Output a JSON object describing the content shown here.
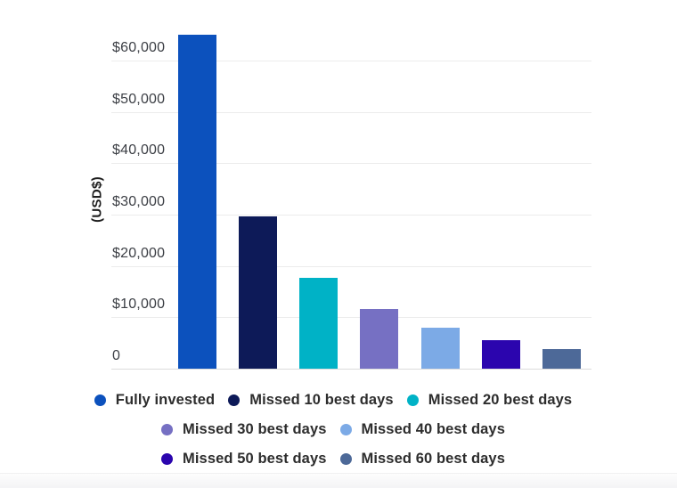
{
  "chart_data": {
    "type": "bar",
    "title": "",
    "xlabel": "",
    "ylabel": "(USD$)",
    "ylim": [
      0,
      65000
    ],
    "ytick_step": 10000,
    "grid": "horizontal gridlines on",
    "legend_position": "bottom, 3 centered rows",
    "yticks": [
      {
        "label": "$60,000",
        "value": 60000
      },
      {
        "label": "$50,000",
        "value": 50000
      },
      {
        "label": "$40,000",
        "value": 40000
      },
      {
        "label": "$30,000",
        "value": 30000
      },
      {
        "label": "$20,000",
        "value": 20000
      },
      {
        "label": "$10,000",
        "value": 10000
      },
      {
        "label": "0",
        "value": 0
      }
    ],
    "categories": [
      "Fully invested",
      "Missed 10 best days",
      "Missed 20 best days",
      "Missed 30 best days",
      "Missed 40 best days",
      "Missed 50 best days",
      "Missed 60 best days"
    ],
    "values": [
      65000,
      29700,
      17700,
      11600,
      7900,
      5500,
      3900
    ],
    "colors": [
      "#0C51BD",
      "#0D1A58",
      "#00B2C6",
      "#7670C3",
      "#7CAAE6",
      "#2B05AE",
      "#4D6998"
    ],
    "legend_rows": [
      [
        0,
        1,
        2
      ],
      [
        3,
        4
      ],
      [
        5,
        6
      ]
    ]
  },
  "colors": {
    "background": "#FFFFFF",
    "gridline": "#ECECEC",
    "axis_line": "#DCDCDC",
    "tick_text": "#3C3F45",
    "legend_text": "#2D2D2D",
    "bottom_band": "#F4F4F5"
  }
}
